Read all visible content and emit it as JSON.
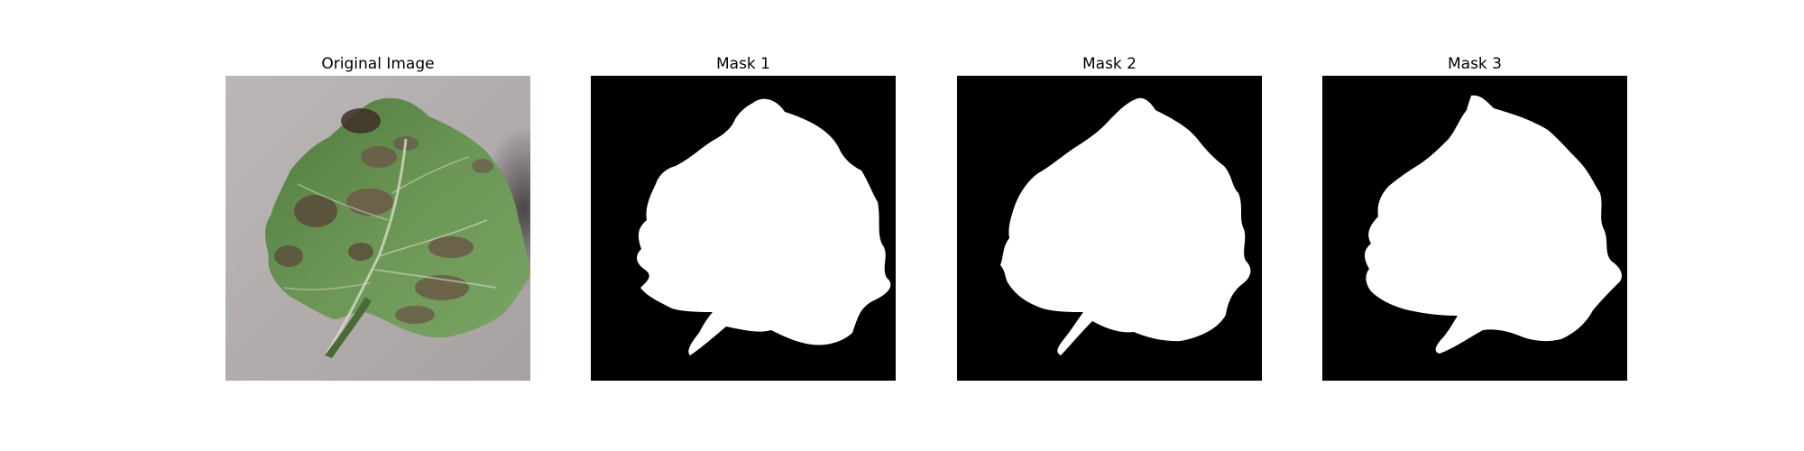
{
  "figure": {
    "panels": [
      {
        "title": "Original Image",
        "kind": "photo"
      },
      {
        "title": "Mask 1",
        "kind": "mask"
      },
      {
        "title": "Mask 2",
        "kind": "mask"
      },
      {
        "title": "Mask 3",
        "kind": "mask"
      }
    ],
    "colors": {
      "background": "#ffffff",
      "mask_background": "#000000",
      "mask_foreground": "#ffffff",
      "leaf_green": "#5f8a4a",
      "leaf_spots": "#6b5a48",
      "table_surface": "#b7b3b3"
    }
  }
}
